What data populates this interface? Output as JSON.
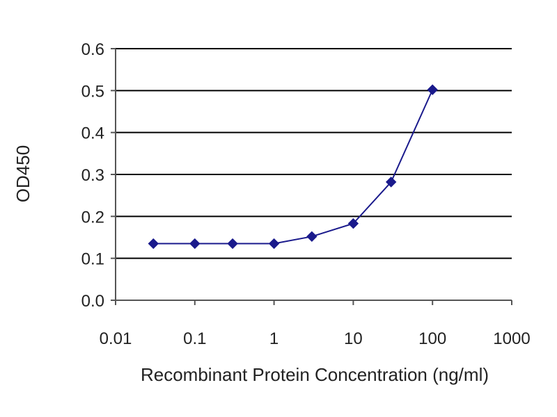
{
  "chart_data": {
    "type": "line",
    "title": "",
    "xlabel": "Recombinant Protein Concentration (ng/ml)",
    "ylabel": "OD450",
    "x_scale": "log",
    "xlim": [
      0.01,
      1000
    ],
    "ylim": [
      0.0,
      0.6
    ],
    "x_ticks": [
      0.01,
      0.1,
      1,
      10,
      100,
      1000
    ],
    "x_tick_labels": [
      "0.01",
      "0.1",
      "1",
      "10",
      "100",
      "1000"
    ],
    "y_ticks": [
      0.0,
      0.1,
      0.2,
      0.3,
      0.4,
      0.5,
      0.6
    ],
    "y_tick_labels": [
      "0.0",
      "0.1",
      "0.2",
      "0.3",
      "0.4",
      "0.5",
      "0.6"
    ],
    "grid": "horizontal",
    "legend": "none",
    "colors": {
      "series": "#1a1a8c",
      "grid": "#000000",
      "axis": "#555555"
    },
    "series": [
      {
        "x": [
          0.03,
          0.1,
          0.3,
          1,
          3,
          10,
          30,
          100
        ],
        "y": [
          0.135,
          0.135,
          0.135,
          0.135,
          0.152,
          0.183,
          0.282,
          0.502
        ],
        "marker": "diamond"
      }
    ]
  }
}
